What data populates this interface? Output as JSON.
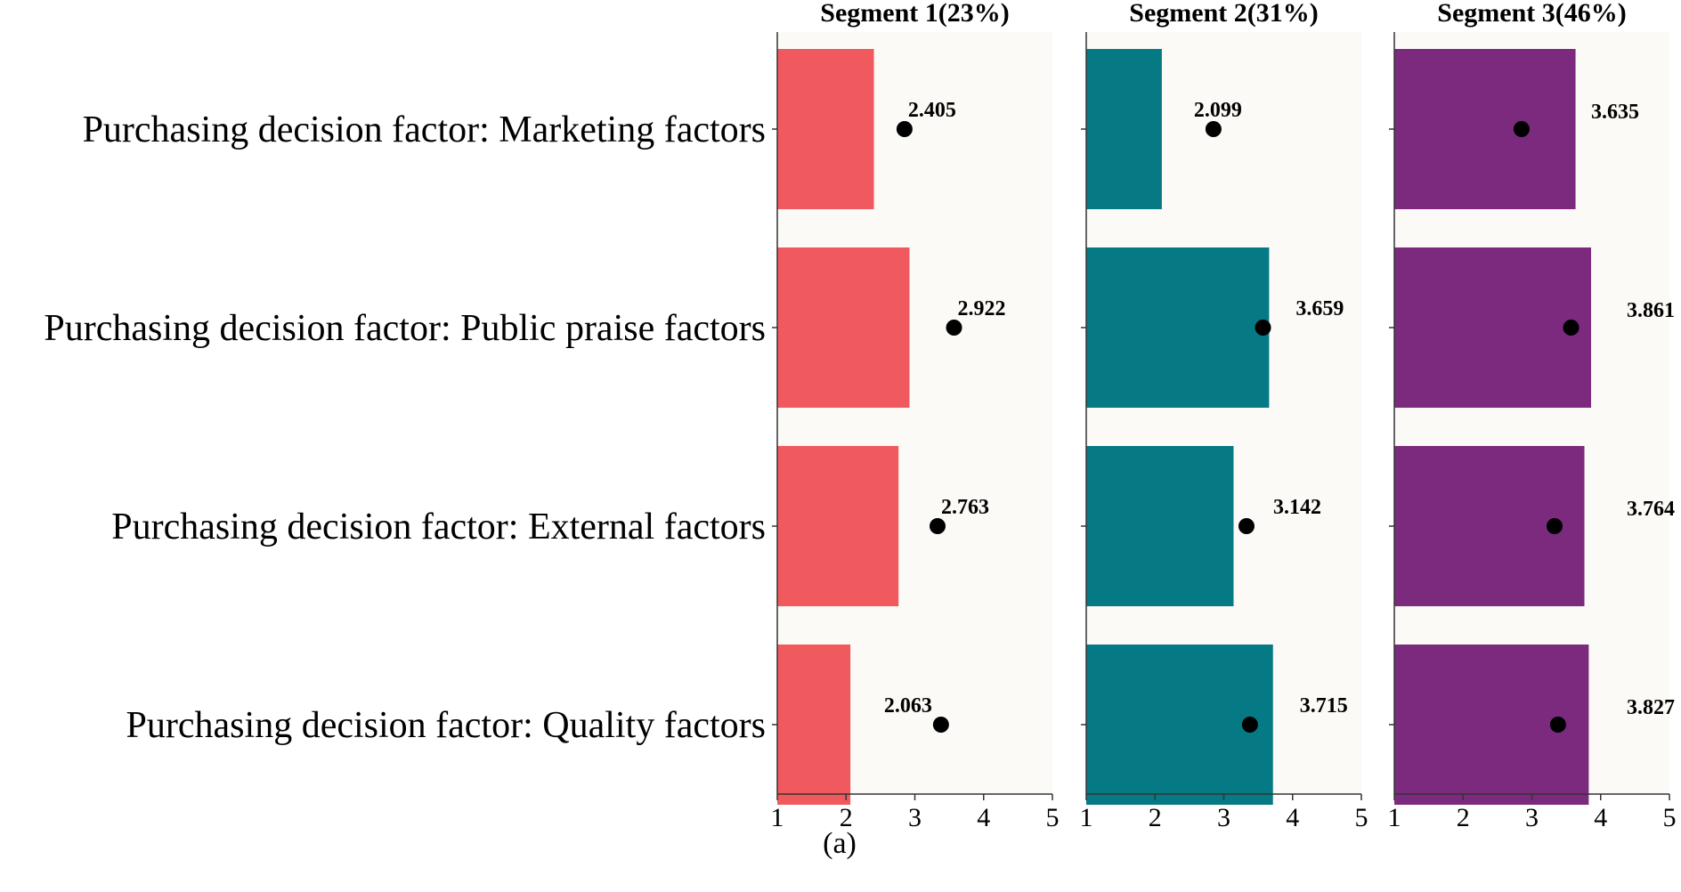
{
  "chart_data": {
    "type": "bar",
    "categories": [
      "Purchasing decision factor: Marketing factors",
      "Purchasing decision factor: Public praise factors",
      "Purchasing decision factor: External factors",
      "Purchasing decision factor: Quality factors"
    ],
    "xlim": [
      1,
      5
    ],
    "xticks": [
      "1",
      "2",
      "3",
      "4",
      "5"
    ],
    "caption": "(a)",
    "series": [
      {
        "name": "Segment 1(23%)",
        "color": "#F05A5F",
        "values": [
          2.405,
          2.922,
          2.763,
          2.063
        ],
        "value_labels": [
          "2.405",
          "2.922",
          "2.763",
          "2.063"
        ],
        "points": [
          2.85,
          3.57,
          3.33,
          3.38
        ]
      },
      {
        "name": "Segment 2(31%)",
        "color": "#067A84",
        "values": [
          2.099,
          3.659,
          3.142,
          3.715
        ],
        "value_labels": [
          "2.099",
          "3.659",
          "3.142",
          "3.715"
        ],
        "points": [
          2.85,
          3.57,
          3.33,
          3.38
        ]
      },
      {
        "name": "Segment 3(46%)",
        "color": "#7B2A7E",
        "values": [
          3.635,
          3.861,
          3.764,
          3.827
        ],
        "value_labels": [
          "3.635",
          "3.861",
          "3.764",
          "3.827"
        ],
        "points": [
          2.85,
          3.57,
          3.33,
          3.38
        ]
      }
    ],
    "panel_background": "#FBFAF6"
  }
}
